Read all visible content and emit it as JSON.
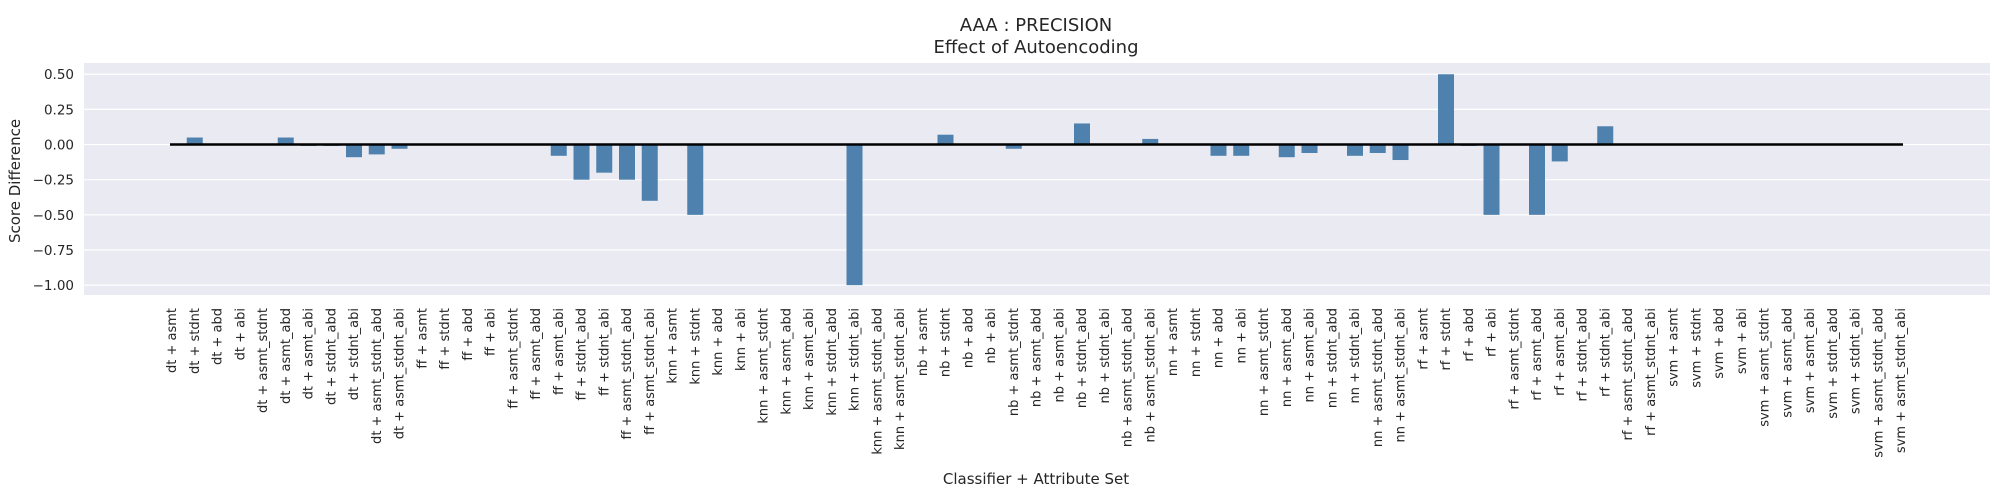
{
  "chart_data": {
    "type": "bar",
    "title": "AAA : PRECISION",
    "subtitle": "Effect of Autoencoding",
    "xlabel": "Classifier + Attribute Set",
    "ylabel": "Score Difference",
    "ylim": [
      -1.07,
      0.58
    ],
    "yticks": [
      0.5,
      0.25,
      0.0,
      -0.25,
      -0.5,
      -0.75,
      -1.0
    ],
    "ytick_labels": [
      "0.50",
      "0.25",
      "0.00",
      "−0.25",
      "−0.50",
      "−0.75",
      "−1.00"
    ],
    "grid": true,
    "bar_color": "#4e81ad",
    "zero_line_color": "#000000",
    "background": "#eaeaf2",
    "categories": [
      "dt + asmt",
      "dt + stdnt",
      "dt + abd",
      "dt + abi",
      "dt + asmt_stdnt",
      "dt + asmt_abd",
      "dt + asmt_abi",
      "dt + stdnt_abd",
      "dt + stdnt_abi",
      "dt + asmt_stdnt_abd",
      "dt + asmt_stdnt_abi",
      "ff + asmt",
      "ff + stdnt",
      "ff + abd",
      "ff + abi",
      "ff + asmt_stdnt",
      "ff + asmt_abd",
      "ff + asmt_abi",
      "ff + stdnt_abd",
      "ff + stdnt_abi",
      "ff + asmt_stdnt_abd",
      "ff + asmt_stdnt_abi",
      "knn + asmt",
      "knn + stdnt",
      "knn + abd",
      "knn + abi",
      "knn + asmt_stdnt",
      "knn + asmt_abd",
      "knn + asmt_abi",
      "knn + stdnt_abd",
      "knn + stdnt_abi",
      "knn + asmt_stdnt_abd",
      "knn + asmt_stdnt_abi",
      "nb + asmt",
      "nb + stdnt",
      "nb + abd",
      "nb + abi",
      "nb + asmt_stdnt",
      "nb + asmt_abd",
      "nb + asmt_abi",
      "nb + stdnt_abd",
      "nb + stdnt_abi",
      "nb + asmt_stdnt_abd",
      "nb + asmt_stdnt_abi",
      "nn + asmt",
      "nn + stdnt",
      "nn + abd",
      "nn + abi",
      "nn + asmt_stdnt",
      "nn + asmt_abd",
      "nn + asmt_abi",
      "nn + stdnt_abd",
      "nn + stdnt_abi",
      "nn + asmt_stdnt_abd",
      "nn + asmt_stdnt_abi",
      "rf + asmt",
      "rf + stdnt",
      "rf + abd",
      "rf + abi",
      "rf + asmt_stdnt",
      "rf + asmt_abd",
      "rf + asmt_abi",
      "rf + stdnt_abd",
      "rf + stdnt_abi",
      "rf + asmt_stdnt_abd",
      "rf + asmt_stdnt_abi",
      "svm + asmt",
      "svm + stdnt",
      "svm + abd",
      "svm + abi",
      "svm + asmt_stdnt",
      "svm + asmt_abd",
      "svm + asmt_abi",
      "svm + stdnt_abd",
      "svm + stdnt_abi",
      "svm + asmt_stdnt_abd",
      "svm + asmt_stdnt_abi"
    ],
    "values": [
      0.0,
      0.05,
      0.0,
      0.0,
      0.0,
      0.05,
      -0.01,
      -0.01,
      -0.09,
      -0.07,
      -0.03,
      0.0,
      0.0,
      0.0,
      0.0,
      0.0,
      0.0,
      -0.08,
      -0.25,
      -0.2,
      -0.25,
      -0.4,
      0.0,
      -0.5,
      0.0,
      0.0,
      0.0,
      0.0,
      0.0,
      0.0,
      -1.0,
      0.0,
      0.0,
      0.0,
      0.07,
      0.0,
      0.0,
      -0.03,
      0.0,
      0.0,
      0.15,
      0.0,
      0.0,
      0.04,
      0.0,
      0.0,
      -0.08,
      -0.08,
      0.0,
      -0.09,
      -0.06,
      0.0,
      -0.08,
      -0.06,
      -0.11,
      0.0,
      0.5,
      -0.01,
      -0.5,
      0.0,
      -0.5,
      -0.12,
      0.0,
      0.13,
      0.0,
      0.0,
      0.0,
      0.0,
      0.0,
      0.0,
      0.0,
      0.0,
      0.0,
      0.0,
      0.0,
      0.0,
      0.0
    ]
  }
}
